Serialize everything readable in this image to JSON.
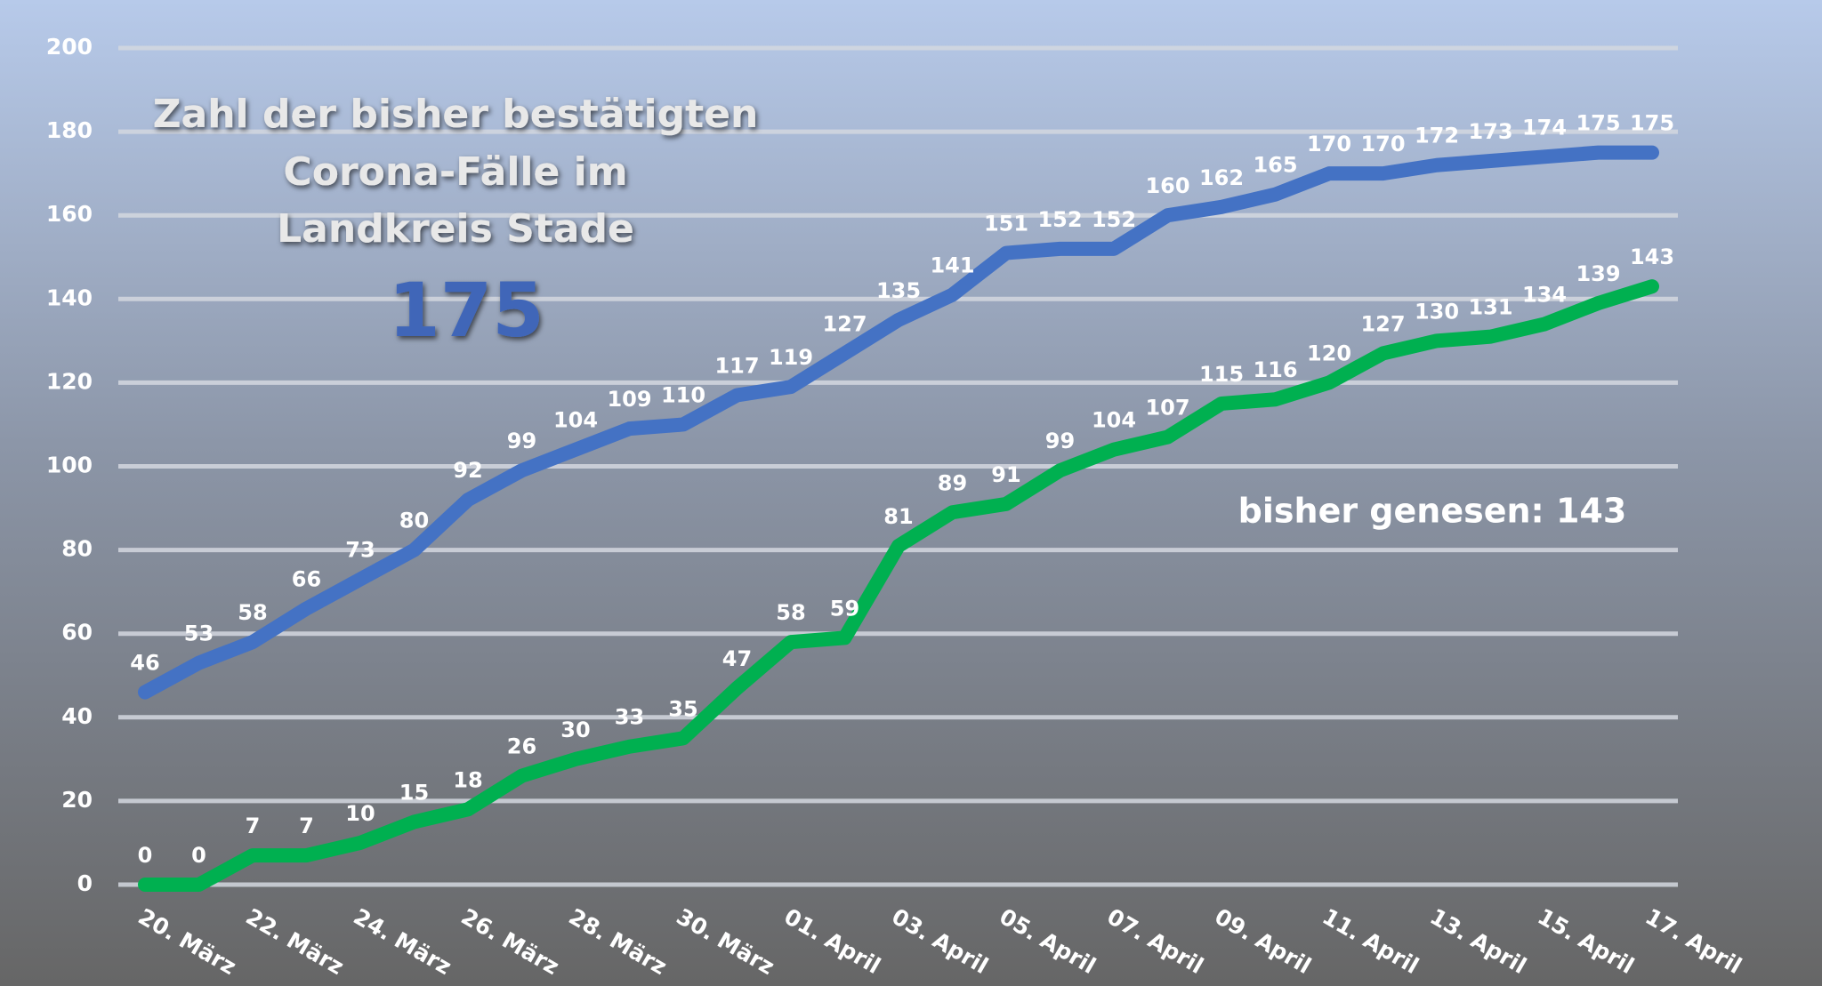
{
  "chart_data": {
    "type": "line",
    "title": [
      "Zahl der bisher bestätigten",
      "Corona-Fälle im",
      "Landkreis Stade"
    ],
    "annotations": [
      "175",
      "bisher genesen: 143"
    ],
    "categories": [
      "20. März",
      null,
      "22. März",
      null,
      "24. März",
      null,
      "26. März",
      null,
      "28. März",
      null,
      "30. März",
      null,
      "01. April",
      null,
      "03. April",
      null,
      "05. April",
      null,
      "07. April",
      null,
      "09. April",
      null,
      "11. April",
      null,
      "13. April",
      null,
      "15. April",
      null,
      "17. April"
    ],
    "series": [
      {
        "color": "#4472c4",
        "values": [
          46,
          53,
          58,
          66,
          73,
          80,
          92,
          99,
          104,
          109,
          110,
          117,
          119,
          127,
          135,
          141,
          151,
          152,
          152,
          160,
          162,
          165,
          170,
          170,
          172,
          173,
          174,
          175,
          175
        ]
      },
      {
        "color": "#00b050",
        "values": [
          0,
          0,
          7,
          7,
          10,
          15,
          18,
          26,
          30,
          33,
          35,
          47,
          58,
          59,
          81,
          89,
          91,
          99,
          104,
          107,
          115,
          116,
          120,
          127,
          130,
          131,
          134,
          139,
          143
        ]
      }
    ],
    "ylim": [
      0,
      200
    ],
    "yticks": [
      0,
      20,
      40,
      60,
      80,
      100,
      120,
      140,
      160,
      180,
      200
    ],
    "grid": true
  }
}
